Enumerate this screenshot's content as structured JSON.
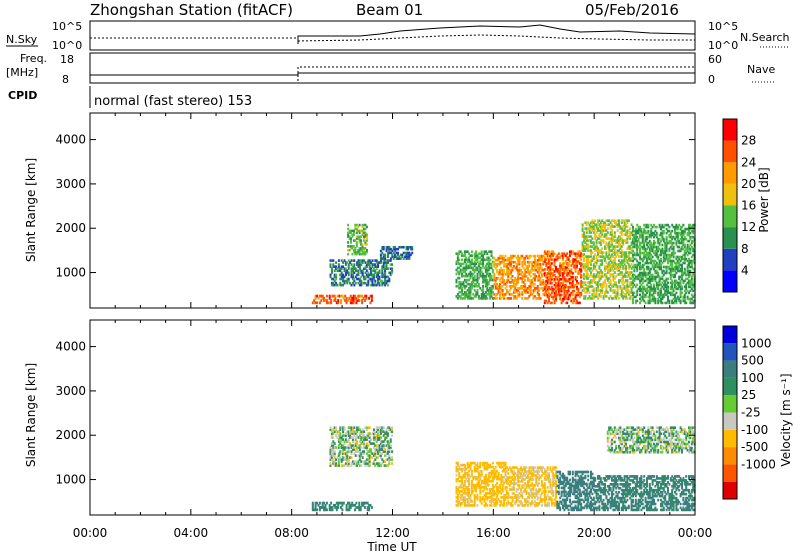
{
  "header": {
    "station": "Zhongshan Station (fitACF)",
    "beam": "Beam 01",
    "date": "05/Feb/2016"
  },
  "status_panels": {
    "nsky_label": "N.Sky",
    "nsky_ticks": [
      "10^5",
      "10^0"
    ],
    "nsearch_label": "N.Search",
    "nsearch_ticks": [
      "10^5",
      "10^0"
    ],
    "freq_label": "Freq.",
    "freq_unit": "[MHz]",
    "freq_ticks": [
      "18",
      "8"
    ],
    "nave_label": "Nave",
    "nave_ticks": [
      "60",
      "0"
    ],
    "cpid_label": "CPID",
    "cpid_text": "normal (fast stereo) 153"
  },
  "colors": {
    "power": [
      "#0000ff",
      "#2040c0",
      "#2a9050",
      "#55c040",
      "#f0c010",
      "#ff9a00",
      "#ff5000",
      "#ff0000"
    ],
    "velocity": [
      "#e00000",
      "#ff5500",
      "#ff8c00",
      "#ffbb00",
      "#c8c8c0",
      "#66cc33",
      "#2e9060",
      "#3a7e7e",
      "#2255bb",
      "#0000dd"
    ]
  },
  "chart_data": [
    {
      "type": "heatmap",
      "panel": "power",
      "ylabel": "Slant Range [km]",
      "xlabel": "",
      "x_ticks": [
        "00:00",
        "04:00",
        "08:00",
        "12:00",
        "16:00",
        "20:00",
        "00:00"
      ],
      "y_ticks": [
        1000,
        2000,
        3000,
        4000
      ],
      "ylim": [
        200,
        4600
      ],
      "xlim_hours": [
        0,
        24
      ],
      "colorbar_label": "Power [dB]",
      "colorbar_ticks": [
        "28",
        "24",
        "20",
        "16",
        "12",
        "8",
        "4"
      ],
      "colorbar_range": [
        0,
        32
      ],
      "echo_regions": [
        {
          "t0": 8.8,
          "t1": 11.2,
          "r0": 300,
          "r1": 500,
          "value": 26
        },
        {
          "t0": 9.5,
          "t1": 12.0,
          "r0": 700,
          "r1": 1300,
          "value": 9
        },
        {
          "t0": 10.2,
          "t1": 11.0,
          "r0": 1400,
          "r1": 2100,
          "value": 14
        },
        {
          "t0": 11.5,
          "t1": 12.8,
          "r0": 1300,
          "r1": 1600,
          "value": 8
        },
        {
          "t0": 14.5,
          "t1": 16.0,
          "r0": 400,
          "r1": 1500,
          "value": 12
        },
        {
          "t0": 16.0,
          "t1": 18.0,
          "r0": 400,
          "r1": 1400,
          "value": 22
        },
        {
          "t0": 18.0,
          "t1": 19.5,
          "r0": 300,
          "r1": 1500,
          "value": 26
        },
        {
          "t0": 19.5,
          "t1": 21.5,
          "r0": 400,
          "r1": 2200,
          "value": 16
        },
        {
          "t0": 21.5,
          "t1": 24.0,
          "r0": 300,
          "r1": 2100,
          "value": 12
        }
      ]
    },
    {
      "type": "heatmap",
      "panel": "velocity",
      "ylabel": "Slant Range [km]",
      "xlabel": "Time UT",
      "x_ticks": [
        "00:00",
        "04:00",
        "08:00",
        "12:00",
        "16:00",
        "20:00",
        "00:00"
      ],
      "y_ticks": [
        1000,
        2000,
        3000,
        4000
      ],
      "ylim": [
        200,
        4600
      ],
      "xlim_hours": [
        0,
        24
      ],
      "colorbar_label": "Velocity [m s⁻¹]",
      "colorbar_ticks": [
        "1000",
        "500",
        "100",
        "25",
        "-25",
        "-100",
        "-500",
        "-1000"
      ],
      "echo_regions": [
        {
          "t0": 8.8,
          "t1": 11.2,
          "r0": 300,
          "r1": 500,
          "value": 150
        },
        {
          "t0": 9.5,
          "t1": 12.0,
          "r0": 1300,
          "r1": 2200,
          "value": 0
        },
        {
          "t0": 14.5,
          "t1": 16.5,
          "r0": 400,
          "r1": 1400,
          "value": -200
        },
        {
          "t0": 16.5,
          "t1": 18.5,
          "r0": 400,
          "r1": 1300,
          "value": -150
        },
        {
          "t0": 18.5,
          "t1": 20.0,
          "r0": 300,
          "r1": 1200,
          "value": 300
        },
        {
          "t0": 20.0,
          "t1": 24.0,
          "r0": 300,
          "r1": 1100,
          "value": 150
        },
        {
          "t0": 20.5,
          "t1": 24.0,
          "r0": 1600,
          "r1": 2200,
          "value": 0
        }
      ]
    }
  ]
}
